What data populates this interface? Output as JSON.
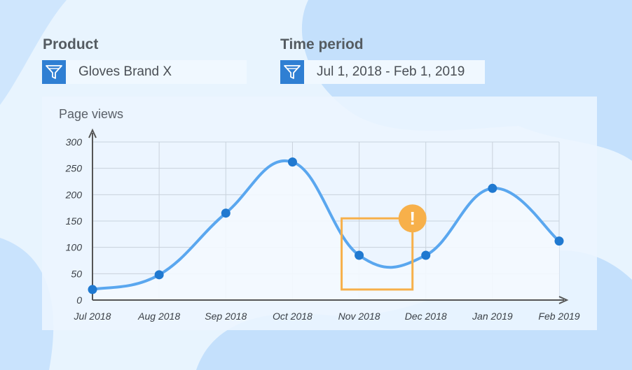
{
  "filters": {
    "product": {
      "label": "Product",
      "value": "Gloves Brand X",
      "icon": "filter-icon"
    },
    "time_period": {
      "label": "Time period",
      "value": "Jul 1, 2018 - Feb 1, 2019",
      "icon": "filter-icon"
    }
  },
  "colors": {
    "accent": "#2f7fd3",
    "line": "#5aa7ef",
    "point": "#2079d0",
    "highlight": "#f7b04a",
    "grid": "#c9d2dc",
    "axis": "#555555"
  },
  "chart_data": {
    "type": "line",
    "title": "Page views",
    "xlabel": "",
    "ylabel": "",
    "categories": [
      "Jul 2018",
      "Aug 2018",
      "Sep 2018",
      "Oct 2018",
      "Nov 2018",
      "Dec 2018",
      "Jan 2019",
      "Feb 2019"
    ],
    "series": [
      {
        "values": [
          20,
          48,
          165,
          262,
          85,
          85,
          212,
          112
        ]
      }
    ],
    "ylim": [
      0,
      300
    ],
    "yticks": [
      0,
      50,
      100,
      150,
      200,
      250,
      300
    ],
    "grid": true,
    "smooth": true,
    "area_fill": true,
    "annotation": {
      "type": "warning",
      "icon": "exclamation-icon",
      "symbol": "!",
      "x_range": [
        "Nov 2018",
        "Dec 2018"
      ],
      "y_range": [
        20,
        155
      ]
    }
  }
}
